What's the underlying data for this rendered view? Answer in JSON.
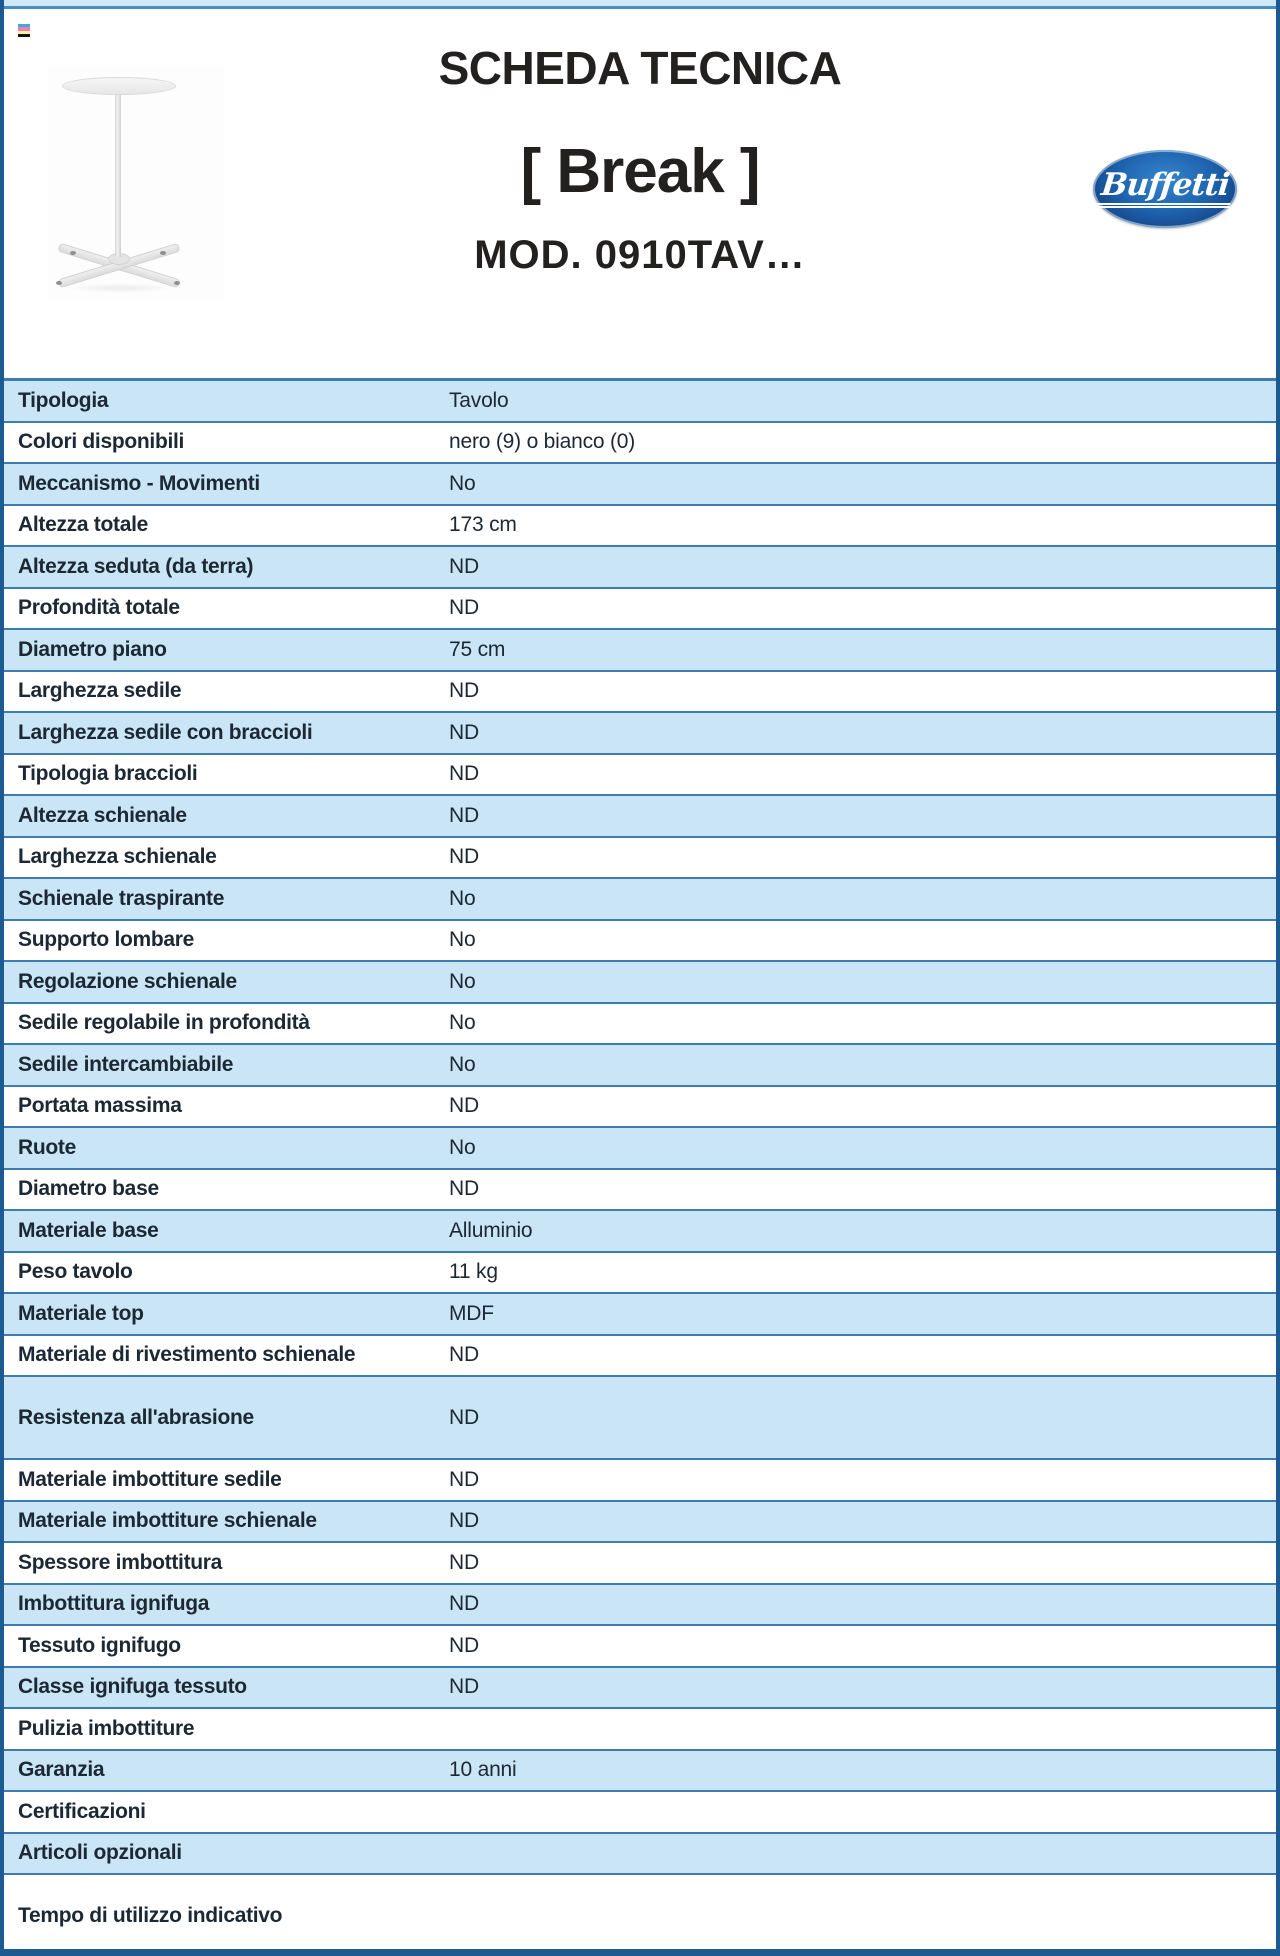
{
  "header": {
    "title": "SCHEDA TECNICA",
    "product_name": "[ Break ]",
    "model": "MOD. 0910TAV…",
    "brand": "Buffetti",
    "print_mark_colors": [
      "#3fa9e0",
      "#f07fae",
      "#f8f29e",
      "#141414"
    ]
  },
  "theme": {
    "row_blue": "#cae5f6",
    "row_white": "#ffffff",
    "divider_blue": "#3c7cb0",
    "frame_blue": "#1d5a92",
    "frame_light": "#cfe9f8",
    "frame_mid": "#4a8ec5",
    "text_dark": "#1c2833",
    "title_black": "#232020"
  },
  "spec_table": {
    "rows": [
      {
        "label": "Tipologia",
        "value": "Tavolo",
        "shade": "blue",
        "tall": false
      },
      {
        "label": "Colori disponibili",
        "value": "nero (9) o bianco (0)",
        "shade": "white",
        "tall": false
      },
      {
        "label": "Meccanismo - Movimenti",
        "value": "No",
        "shade": "blue",
        "tall": false
      },
      {
        "label": "Altezza totale",
        "value": "173 cm",
        "shade": "white",
        "tall": false
      },
      {
        "label": "Altezza seduta (da terra)",
        "value": "ND",
        "shade": "blue",
        "tall": false
      },
      {
        "label": "Profondità totale",
        "value": "ND",
        "shade": "white",
        "tall": false
      },
      {
        "label": "Diametro piano",
        "value": "75 cm",
        "shade": "blue",
        "tall": false
      },
      {
        "label": "Larghezza sedile",
        "value": "ND",
        "shade": "white",
        "tall": false
      },
      {
        "label": "Larghezza sedile con braccioli",
        "value": "ND",
        "shade": "blue",
        "tall": false
      },
      {
        "label": "Tipologia braccioli",
        "value": "ND",
        "shade": "white",
        "tall": false
      },
      {
        "label": "Altezza schienale",
        "value": "ND",
        "shade": "blue",
        "tall": false
      },
      {
        "label": "Larghezza schienale",
        "value": "ND",
        "shade": "white",
        "tall": false
      },
      {
        "label": "Schienale traspirante",
        "value": "No",
        "shade": "blue",
        "tall": false
      },
      {
        "label": "Supporto lombare",
        "value": "No",
        "shade": "white",
        "tall": false
      },
      {
        "label": "Regolazione schienale",
        "value": "No",
        "shade": "blue",
        "tall": false
      },
      {
        "label": "Sedile regolabile in profondità",
        "value": "No",
        "shade": "white",
        "tall": false
      },
      {
        "label": "Sedile intercambiabile",
        "value": "No",
        "shade": "blue",
        "tall": false
      },
      {
        "label": "Portata massima",
        "value": "ND",
        "shade": "white",
        "tall": false
      },
      {
        "label": "Ruote",
        "value": "No",
        "shade": "blue",
        "tall": false
      },
      {
        "label": "Diametro base",
        "value": "ND",
        "shade": "white",
        "tall": false
      },
      {
        "label": "Materiale base",
        "value": "Alluminio",
        "shade": "blue",
        "tall": false
      },
      {
        "label": "Peso tavolo",
        "value": "11 kg",
        "shade": "white",
        "tall": false
      },
      {
        "label": "Materiale top",
        "value": "MDF",
        "shade": "blue",
        "tall": false
      },
      {
        "label": "Materiale di rivestimento schienale",
        "value": "ND",
        "shade": "white",
        "tall": false
      },
      {
        "label": "Resistenza all'abrasione",
        "value": "ND",
        "shade": "blue",
        "tall": true
      },
      {
        "label": "Materiale imbottiture sedile",
        "value": "ND",
        "shade": "white",
        "tall": false
      },
      {
        "label": "Materiale imbottiture schienale",
        "value": "ND",
        "shade": "blue",
        "tall": false
      },
      {
        "label": "Spessore imbottitura",
        "value": "ND",
        "shade": "white",
        "tall": false
      },
      {
        "label": "Imbottitura ignifuga",
        "value": "ND",
        "shade": "blue",
        "tall": false
      },
      {
        "label": "Tessuto ignifugo",
        "value": "ND",
        "shade": "white",
        "tall": false
      },
      {
        "label": "Classe ignifuga tessuto",
        "value": "ND",
        "shade": "blue",
        "tall": false
      },
      {
        "label": "Pulizia imbottiture",
        "value": "",
        "shade": "white",
        "tall": false
      },
      {
        "label": "Garanzia",
        "value": "10 anni",
        "shade": "blue",
        "tall": false
      },
      {
        "label": "Certificazioni",
        "value": "",
        "shade": "white",
        "tall": false
      },
      {
        "label": "Articoli opzionali",
        "value": "",
        "shade": "blue",
        "tall": false
      },
      {
        "label": "Tempo di utilizzo indicativo",
        "value": "",
        "shade": "white",
        "tall": true
      }
    ]
  }
}
